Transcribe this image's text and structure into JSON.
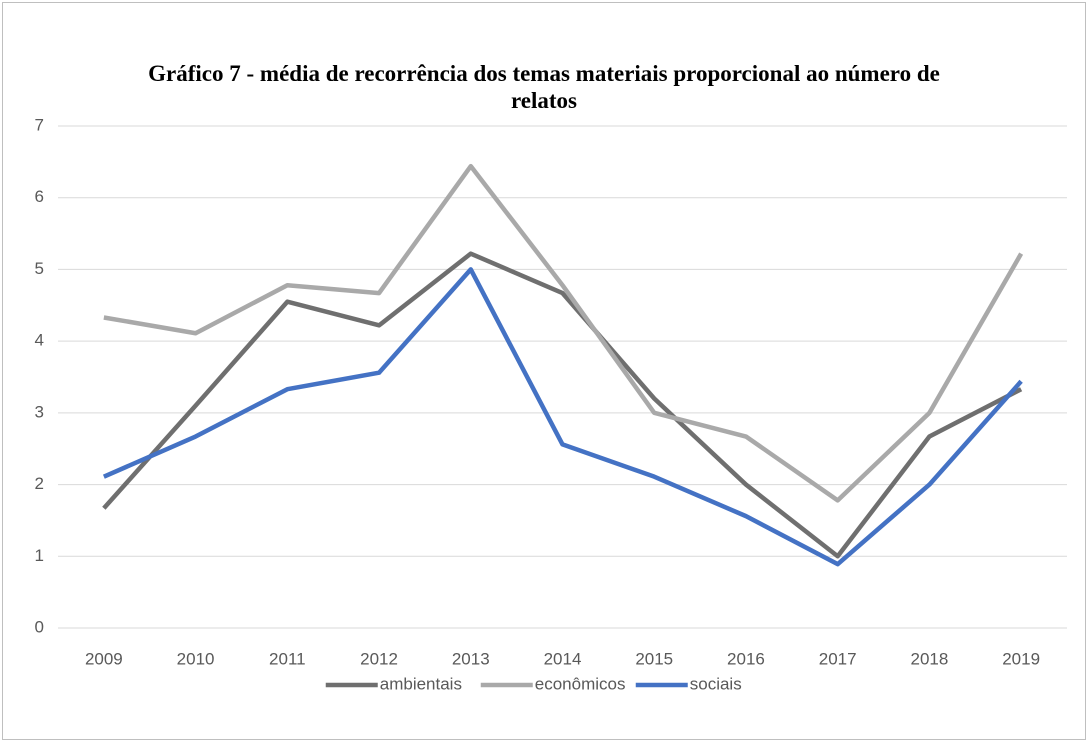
{
  "chart_data": {
    "type": "line",
    "title": "Gráfico 7 - média de recorrência dos temas materiais proporcional ao número de relatos",
    "categories": [
      "2009",
      "2010",
      "2011",
      "2012",
      "2013",
      "2014",
      "2015",
      "2016",
      "2017",
      "2018",
      "2019"
    ],
    "series": [
      {
        "name": "ambientais",
        "color": "#6f6f6f",
        "values": [
          1.67,
          3.1,
          4.55,
          4.22,
          5.22,
          4.67,
          3.2,
          2.0,
          1.0,
          2.67,
          3.33
        ]
      },
      {
        "name": "econômicos",
        "color": "#a9a9a9",
        "values": [
          4.33,
          4.11,
          4.78,
          4.67,
          6.44,
          4.78,
          3.0,
          2.67,
          1.78,
          3.0,
          5.22
        ]
      },
      {
        "name": "sociais",
        "color": "#4472c4",
        "values": [
          2.11,
          2.67,
          3.33,
          3.56,
          5.0,
          2.56,
          2.11,
          1.56,
          0.89,
          2.0,
          3.44
        ]
      }
    ],
    "ylim": [
      0,
      7
    ],
    "yticks": [
      0,
      1,
      2,
      3,
      4,
      5,
      6,
      7
    ],
    "grid": true,
    "legend": "bottom"
  }
}
